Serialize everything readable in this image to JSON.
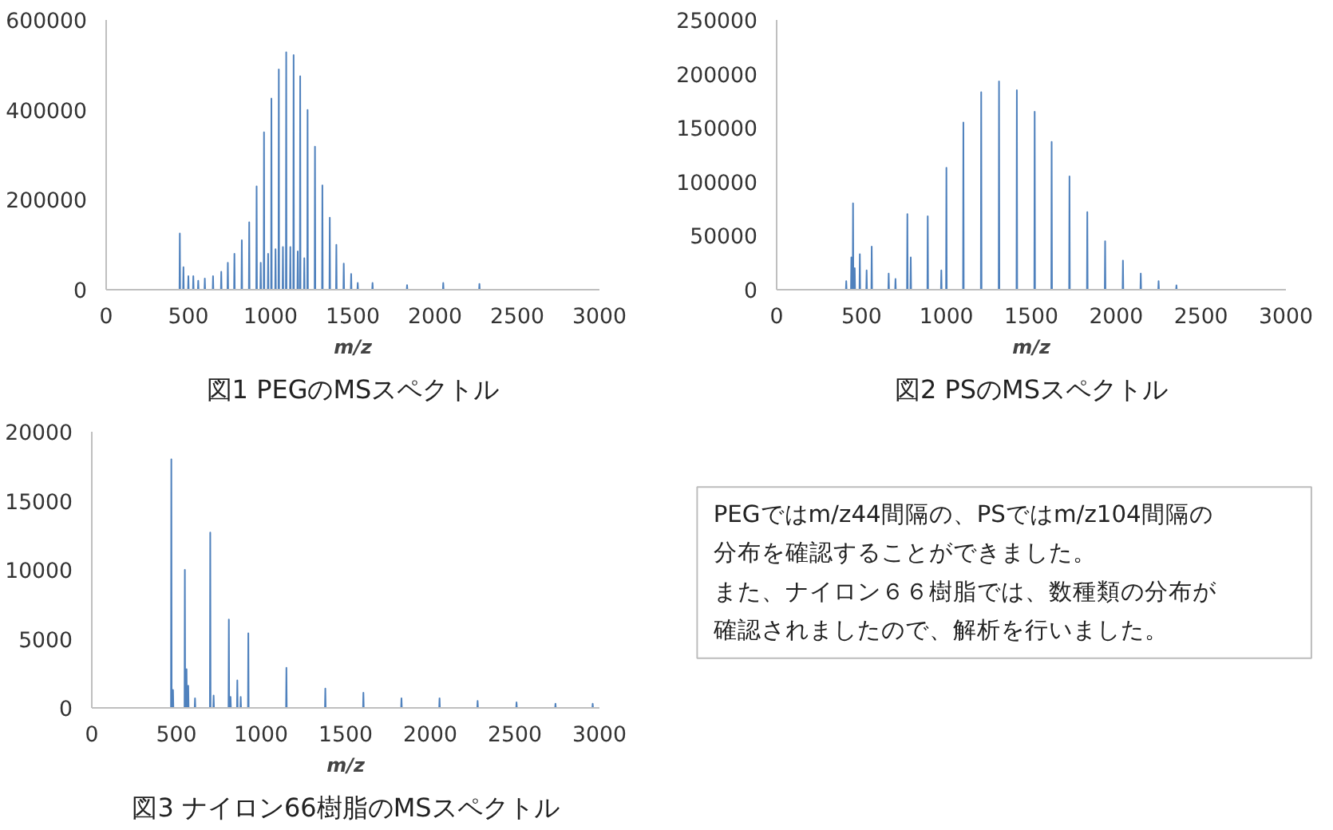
{
  "chart_data": [
    {
      "type": "line",
      "title": "図1 PEGのMSスペクトル",
      "xlabel": "m/z",
      "xlim": [
        0,
        3000
      ],
      "xticks": [
        0,
        500,
        1000,
        1500,
        2000,
        2500,
        3000
      ],
      "ylim": [
        0,
        600000
      ],
      "yticks": [
        0,
        200000,
        400000,
        600000
      ],
      "grid": false,
      "series": [
        {
          "color": "#4f81bd",
          "x": [
            300,
            446,
            448,
            450,
            468,
            470,
            472,
            498,
            500,
            502,
            528,
            530,
            532,
            558,
            560,
            562,
            598,
            600,
            602,
            648,
            650,
            652,
            698,
            700,
            702,
            738,
            740,
            742,
            778,
            780,
            782,
            823,
            825,
            827,
            868,
            870,
            872,
            913,
            915,
            917,
            938,
            940,
            942,
            958,
            960,
            962,
            983,
            985,
            987,
            1003,
            1005,
            1007,
            1028,
            1030,
            1032,
            1048,
            1050,
            1052,
            1073,
            1075,
            1077,
            1093,
            1095,
            1097,
            1118,
            1120,
            1122,
            1138,
            1140,
            1142,
            1163,
            1165,
            1167,
            1178,
            1180,
            1182,
            1203,
            1205,
            1207,
            1223,
            1225,
            1227,
            1268,
            1270,
            1272,
            1313,
            1315,
            1317,
            1358,
            1360,
            1362,
            1398,
            1400,
            1402,
            1443,
            1445,
            1447,
            1488,
            1490,
            1492,
            1528,
            1530,
            1532,
            1618,
            1620,
            1622,
            1828,
            1830,
            1832,
            2048,
            2050,
            2052,
            2268,
            2270,
            2272,
            3000
          ],
          "values": [
            0,
            0,
            125000,
            0,
            0,
            50000,
            0,
            0,
            30000,
            0,
            0,
            30000,
            0,
            0,
            20000,
            0,
            0,
            25000,
            0,
            0,
            30000,
            0,
            0,
            40000,
            0,
            0,
            60000,
            0,
            0,
            80000,
            0,
            0,
            110000,
            0,
            0,
            150000,
            0,
            0,
            230000,
            0,
            0,
            60000,
            0,
            0,
            350000,
            0,
            0,
            80000,
            0,
            0,
            425000,
            0,
            0,
            90000,
            0,
            0,
            490000,
            0,
            0,
            95000,
            0,
            0,
            528000,
            0,
            0,
            95000,
            0,
            0,
            522000,
            0,
            0,
            85000,
            0,
            0,
            475000,
            0,
            0,
            70000,
            0,
            0,
            400000,
            0,
            0,
            318000,
            0,
            0,
            232000,
            0,
            0,
            160000,
            0,
            0,
            100000,
            0,
            0,
            58000,
            0,
            0,
            35000,
            0,
            0,
            15000,
            0,
            0,
            15000,
            0,
            0,
            10000,
            0,
            0,
            15000,
            0,
            0,
            13000,
            0,
            0
          ]
        }
      ]
    },
    {
      "type": "line",
      "title": "図2 PSのMSスペクトル",
      "xlabel": "m/z",
      "xlim": [
        0,
        3000
      ],
      "xticks": [
        0,
        500,
        1000,
        1500,
        2000,
        2500,
        3000
      ],
      "ylim": [
        0,
        250000
      ],
      "yticks": [
        0,
        50000,
        100000,
        150000,
        200000,
        250000
      ],
      "grid": false,
      "series": [
        {
          "color": "#4f81bd",
          "x": [
            300,
            408,
            410,
            412,
            438,
            440,
            442,
            448,
            450,
            452,
            458,
            460,
            462,
            488,
            490,
            492,
            528,
            530,
            532,
            558,
            560,
            562,
            658,
            660,
            662,
            698,
            700,
            702,
            768,
            770,
            772,
            788,
            790,
            792,
            888,
            890,
            892,
            968,
            970,
            972,
            998,
            1000,
            1002,
            1098,
            1100,
            1102,
            1203,
            1205,
            1207,
            1308,
            1310,
            1312,
            1413,
            1415,
            1417,
            1518,
            1520,
            1522,
            1618,
            1620,
            1622,
            1723,
            1725,
            1727,
            1828,
            1830,
            1832,
            1933,
            1935,
            1937,
            2038,
            2040,
            2042,
            2143,
            2145,
            2147,
            2248,
            2250,
            2252,
            2353,
            2355,
            2357,
            3000
          ],
          "values": [
            0,
            0,
            8000,
            0,
            0,
            30000,
            0,
            0,
            80000,
            0,
            0,
            20000,
            0,
            0,
            33000,
            0,
            0,
            18000,
            0,
            0,
            40000,
            0,
            0,
            15000,
            0,
            0,
            10000,
            0,
            0,
            70000,
            0,
            0,
            30000,
            0,
            0,
            68000,
            0,
            0,
            18000,
            0,
            0,
            113000,
            0,
            0,
            155000,
            0,
            0,
            183000,
            0,
            0,
            193000,
            0,
            0,
            185000,
            0,
            0,
            165000,
            0,
            0,
            137000,
            0,
            0,
            105000,
            0,
            0,
            72000,
            0,
            0,
            45000,
            0,
            0,
            27000,
            0,
            0,
            15000,
            0,
            0,
            8000,
            0,
            0,
            4000,
            0,
            0
          ]
        }
      ]
    },
    {
      "type": "line",
      "title": "図3 ナイロン66樹脂のMSスペクトル",
      "xlabel": "m/z",
      "xlim": [
        0,
        3000
      ],
      "xticks": [
        0,
        500,
        1000,
        1500,
        2000,
        2500,
        3000
      ],
      "ylim": [
        0,
        20000
      ],
      "yticks": [
        0,
        5000,
        10000,
        15000,
        20000
      ],
      "grid": false,
      "series": [
        {
          "color": "#4f81bd",
          "x": [
            300,
            468,
            470,
            472,
            478,
            480,
            482,
            548,
            550,
            552,
            558,
            560,
            562,
            568,
            570,
            572,
            608,
            610,
            612,
            698,
            700,
            702,
            718,
            720,
            722,
            808,
            810,
            812,
            818,
            820,
            822,
            858,
            860,
            862,
            878,
            880,
            882,
            923,
            925,
            927,
            1148,
            1150,
            1152,
            1378,
            1380,
            1382,
            1603,
            1605,
            1607,
            1828,
            1830,
            1832,
            2053,
            2055,
            2057,
            2278,
            2280,
            2282,
            2508,
            2510,
            2512,
            2738,
            2740,
            2742,
            2958,
            2960,
            2962,
            3000
          ],
          "values": [
            0,
            0,
            18000,
            0,
            0,
            1300,
            0,
            0,
            10000,
            0,
            0,
            2800,
            0,
            0,
            1600,
            0,
            0,
            700,
            0,
            0,
            12700,
            0,
            0,
            900,
            0,
            0,
            6400,
            0,
            0,
            800,
            0,
            0,
            2000,
            0,
            0,
            800,
            0,
            0,
            5400,
            0,
            0,
            2900,
            0,
            0,
            1400,
            0,
            0,
            1100,
            0,
            0,
            700,
            0,
            0,
            700,
            0,
            0,
            500,
            0,
            0,
            400,
            0,
            0,
            300,
            0,
            0,
            300,
            0,
            0
          ]
        }
      ]
    },
    {
      "type": "other",
      "annotations": [
        "PEGではm/z44間隔の、PSではm/z104間隔の",
        "分布を確認することができました。",
        "また、ナイロン６６樹脂では、数種類の分布が",
        "確認されましたので、解析を行いました。"
      ]
    }
  ]
}
